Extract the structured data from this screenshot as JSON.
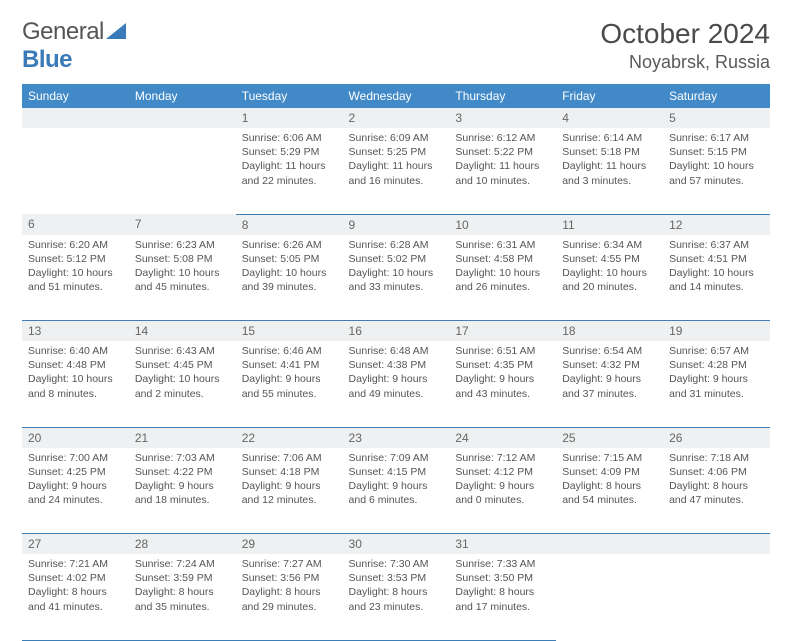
{
  "brand": {
    "part1": "General",
    "part2": "Blue"
  },
  "title": "October 2024",
  "location": "Noyabrsk, Russia",
  "weekdays": [
    "Sunday",
    "Monday",
    "Tuesday",
    "Wednesday",
    "Thursday",
    "Friday",
    "Saturday"
  ],
  "colors": {
    "header_bg": "#4189c7",
    "header_fg": "#ffffff",
    "daynum_bg": "#eef0f1",
    "rule": "#3f7fb5"
  },
  "font": {
    "family": "Arial",
    "title_size_pt": 21,
    "location_size_pt": 13,
    "weekday_size_pt": 9,
    "cell_size_pt": 8
  },
  "weeks": [
    [
      null,
      null,
      {
        "n": "1",
        "sunrise": "6:06 AM",
        "sunset": "5:29 PM",
        "daylight": "11 hours and 22 minutes."
      },
      {
        "n": "2",
        "sunrise": "6:09 AM",
        "sunset": "5:25 PM",
        "daylight": "11 hours and 16 minutes."
      },
      {
        "n": "3",
        "sunrise": "6:12 AM",
        "sunset": "5:22 PM",
        "daylight": "11 hours and 10 minutes."
      },
      {
        "n": "4",
        "sunrise": "6:14 AM",
        "sunset": "5:18 PM",
        "daylight": "11 hours and 3 minutes."
      },
      {
        "n": "5",
        "sunrise": "6:17 AM",
        "sunset": "5:15 PM",
        "daylight": "10 hours and 57 minutes."
      }
    ],
    [
      {
        "n": "6",
        "sunrise": "6:20 AM",
        "sunset": "5:12 PM",
        "daylight": "10 hours and 51 minutes."
      },
      {
        "n": "7",
        "sunrise": "6:23 AM",
        "sunset": "5:08 PM",
        "daylight": "10 hours and 45 minutes."
      },
      {
        "n": "8",
        "sunrise": "6:26 AM",
        "sunset": "5:05 PM",
        "daylight": "10 hours and 39 minutes."
      },
      {
        "n": "9",
        "sunrise": "6:28 AM",
        "sunset": "5:02 PM",
        "daylight": "10 hours and 33 minutes."
      },
      {
        "n": "10",
        "sunrise": "6:31 AM",
        "sunset": "4:58 PM",
        "daylight": "10 hours and 26 minutes."
      },
      {
        "n": "11",
        "sunrise": "6:34 AM",
        "sunset": "4:55 PM",
        "daylight": "10 hours and 20 minutes."
      },
      {
        "n": "12",
        "sunrise": "6:37 AM",
        "sunset": "4:51 PM",
        "daylight": "10 hours and 14 minutes."
      }
    ],
    [
      {
        "n": "13",
        "sunrise": "6:40 AM",
        "sunset": "4:48 PM",
        "daylight": "10 hours and 8 minutes."
      },
      {
        "n": "14",
        "sunrise": "6:43 AM",
        "sunset": "4:45 PM",
        "daylight": "10 hours and 2 minutes."
      },
      {
        "n": "15",
        "sunrise": "6:46 AM",
        "sunset": "4:41 PM",
        "daylight": "9 hours and 55 minutes."
      },
      {
        "n": "16",
        "sunrise": "6:48 AM",
        "sunset": "4:38 PM",
        "daylight": "9 hours and 49 minutes."
      },
      {
        "n": "17",
        "sunrise": "6:51 AM",
        "sunset": "4:35 PM",
        "daylight": "9 hours and 43 minutes."
      },
      {
        "n": "18",
        "sunrise": "6:54 AM",
        "sunset": "4:32 PM",
        "daylight": "9 hours and 37 minutes."
      },
      {
        "n": "19",
        "sunrise": "6:57 AM",
        "sunset": "4:28 PM",
        "daylight": "9 hours and 31 minutes."
      }
    ],
    [
      {
        "n": "20",
        "sunrise": "7:00 AM",
        "sunset": "4:25 PM",
        "daylight": "9 hours and 24 minutes."
      },
      {
        "n": "21",
        "sunrise": "7:03 AM",
        "sunset": "4:22 PM",
        "daylight": "9 hours and 18 minutes."
      },
      {
        "n": "22",
        "sunrise": "7:06 AM",
        "sunset": "4:18 PM",
        "daylight": "9 hours and 12 minutes."
      },
      {
        "n": "23",
        "sunrise": "7:09 AM",
        "sunset": "4:15 PM",
        "daylight": "9 hours and 6 minutes."
      },
      {
        "n": "24",
        "sunrise": "7:12 AM",
        "sunset": "4:12 PM",
        "daylight": "9 hours and 0 minutes."
      },
      {
        "n": "25",
        "sunrise": "7:15 AM",
        "sunset": "4:09 PM",
        "daylight": "8 hours and 54 minutes."
      },
      {
        "n": "26",
        "sunrise": "7:18 AM",
        "sunset": "4:06 PM",
        "daylight": "8 hours and 47 minutes."
      }
    ],
    [
      {
        "n": "27",
        "sunrise": "7:21 AM",
        "sunset": "4:02 PM",
        "daylight": "8 hours and 41 minutes."
      },
      {
        "n": "28",
        "sunrise": "7:24 AM",
        "sunset": "3:59 PM",
        "daylight": "8 hours and 35 minutes."
      },
      {
        "n": "29",
        "sunrise": "7:27 AM",
        "sunset": "3:56 PM",
        "daylight": "8 hours and 29 minutes."
      },
      {
        "n": "30",
        "sunrise": "7:30 AM",
        "sunset": "3:53 PM",
        "daylight": "8 hours and 23 minutes."
      },
      {
        "n": "31",
        "sunrise": "7:33 AM",
        "sunset": "3:50 PM",
        "daylight": "8 hours and 17 minutes."
      },
      null,
      null
    ]
  ],
  "labels": {
    "sunrise": "Sunrise:",
    "sunset": "Sunset:",
    "daylight": "Daylight:"
  }
}
